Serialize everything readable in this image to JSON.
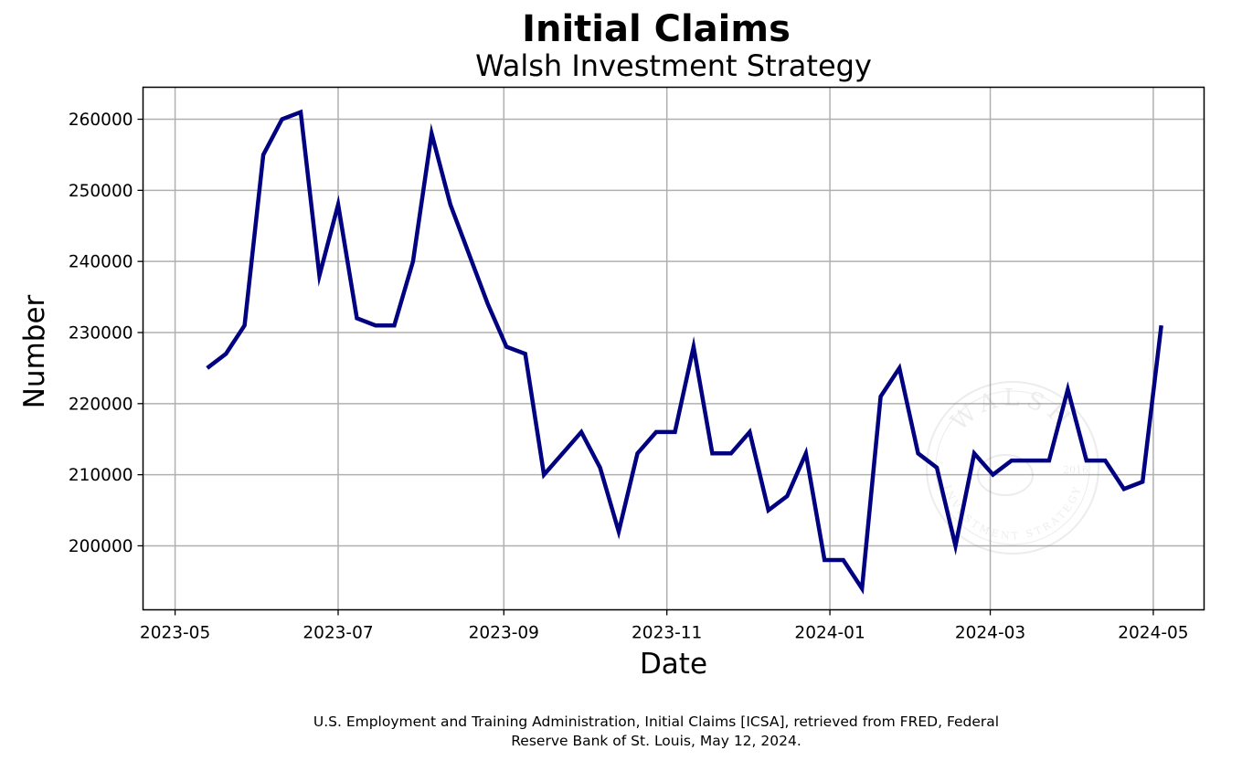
{
  "chart_data": {
    "type": "line",
    "title": "Initial Claims",
    "subtitle": "Walsh Investment Strategy",
    "xlabel": "Date",
    "ylabel": "Number",
    "grid": true,
    "line_color": "#000080",
    "x_ticks": [
      "2023-05",
      "2023-07",
      "2023-09",
      "2023-11",
      "2024-01",
      "2024-03",
      "2024-05"
    ],
    "y_ticks": [
      200000,
      210000,
      220000,
      230000,
      240000,
      250000,
      260000
    ],
    "xlim": [
      "2023-04-19",
      "2024-05-20"
    ],
    "ylim": [
      191000,
      264500
    ],
    "series": [
      {
        "x": [
          "2023-05-13",
          "2023-05-20",
          "2023-05-27",
          "2023-06-03",
          "2023-06-10",
          "2023-06-17",
          "2023-06-24",
          "2023-07-01",
          "2023-07-08",
          "2023-07-15",
          "2023-07-22",
          "2023-07-29",
          "2023-08-05",
          "2023-08-12",
          "2023-08-19",
          "2023-08-26",
          "2023-09-02",
          "2023-09-09",
          "2023-09-16",
          "2023-09-23",
          "2023-09-30",
          "2023-10-07",
          "2023-10-14",
          "2023-10-21",
          "2023-10-28",
          "2023-11-04",
          "2023-11-11",
          "2023-11-18",
          "2023-11-25",
          "2023-12-02",
          "2023-12-09",
          "2023-12-16",
          "2023-12-23",
          "2023-12-30",
          "2024-01-06",
          "2024-01-13",
          "2024-01-20",
          "2024-01-27",
          "2024-02-03",
          "2024-02-10",
          "2024-02-17",
          "2024-02-24",
          "2024-03-02",
          "2024-03-09",
          "2024-03-16",
          "2024-03-23",
          "2024-03-30",
          "2024-04-06",
          "2024-04-13",
          "2024-04-20",
          "2024-04-27",
          "2024-05-04"
        ],
        "values": [
          225000,
          227000,
          231000,
          255000,
          260000,
          261000,
          238000,
          248000,
          232000,
          231000,
          231000,
          240000,
          258000,
          248000,
          241000,
          234000,
          228000,
          227000,
          210000,
          213000,
          216000,
          211000,
          202000,
          213000,
          216000,
          216000,
          228000,
          213000,
          213000,
          216000,
          205000,
          207000,
          213000,
          198000,
          198000,
          194000,
          221000,
          225000,
          213000,
          211000,
          200000,
          213000,
          210000,
          212000,
          212000,
          212000,
          222000,
          212000,
          212000,
          208000,
          209000,
          231000
        ]
      }
    ]
  },
  "watermark": {
    "top_text": "WALSH",
    "bottom_text": "INVESTMENT STRATEGY",
    "year": "2016"
  },
  "source_note": {
    "line1": "U.S. Employment and Training Administration, Initial Claims [ICSA], retrieved from FRED, Federal",
    "line2": "Reserve Bank of St. Louis, May 12, 2024."
  }
}
